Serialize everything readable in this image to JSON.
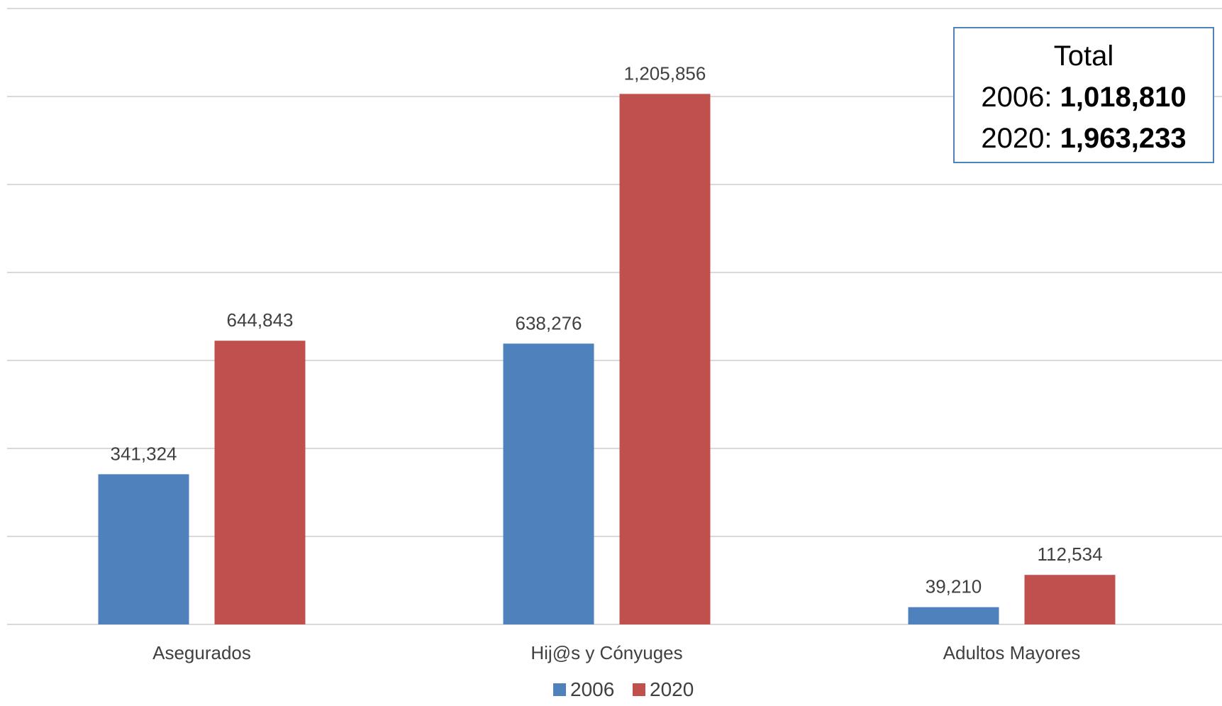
{
  "chart_data": {
    "type": "bar",
    "categories": [
      "Asegurados",
      "Hij@s y Cónyuges",
      "Adultos Mayores"
    ],
    "series": [
      {
        "name": "2006",
        "color": "#4f81bd",
        "values": [
          341324,
          638276,
          39210
        ],
        "labels": [
          "341,324",
          "638,276",
          "39,210"
        ]
      },
      {
        "name": "2020",
        "color": "#c0504d",
        "values": [
          644843,
          1205856,
          112534
        ],
        "labels": [
          "644,843",
          "1,205,856",
          "112,534"
        ]
      }
    ],
    "ylim": [
      0,
      1400000
    ],
    "ytick_step": 200000,
    "grid": true,
    "legend_position": "bottom-center",
    "title": "",
    "xlabel": "",
    "ylabel": ""
  },
  "totals_box": {
    "title": "Total",
    "rows": [
      {
        "label": "2006: ",
        "value": "1,018,810"
      },
      {
        "label": "2020: ",
        "value": "1,963,233"
      }
    ]
  }
}
